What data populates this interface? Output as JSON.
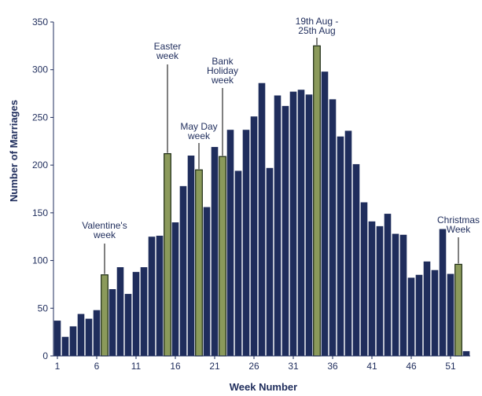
{
  "chart_data": {
    "type": "bar",
    "xlabel": "Week Number",
    "ylabel": "Number of Marriages",
    "ylim": [
      0,
      350
    ],
    "yticks": [
      0,
      50,
      100,
      150,
      200,
      250,
      300,
      350
    ],
    "xtick_labels": [
      1,
      6,
      11,
      16,
      21,
      26,
      31,
      36,
      41,
      46,
      51
    ],
    "grid": false,
    "legend": "none",
    "colors": {
      "normal": "#1f2d5c",
      "highlight": "#8b9a5b",
      "highlight_outline": "#1b2a12",
      "axis": "#1f2d5c"
    },
    "x": [
      1,
      2,
      3,
      4,
      5,
      6,
      7,
      8,
      9,
      10,
      11,
      12,
      13,
      14,
      15,
      16,
      17,
      18,
      19,
      20,
      21,
      22,
      23,
      24,
      25,
      26,
      27,
      28,
      29,
      30,
      31,
      32,
      33,
      34,
      35,
      36,
      37,
      38,
      39,
      40,
      41,
      42,
      43,
      44,
      45,
      46,
      47,
      48,
      49,
      50,
      51,
      52,
      53
    ],
    "values": [
      37,
      20,
      31,
      44,
      39,
      48,
      85,
      70,
      93,
      65,
      88,
      93,
      125,
      126,
      212,
      140,
      178,
      210,
      195,
      156,
      219,
      209,
      237,
      194,
      237,
      251,
      286,
      197,
      273,
      262,
      277,
      279,
      274,
      325,
      298,
      269,
      230,
      236,
      201,
      161,
      141,
      136,
      149,
      128,
      127,
      82,
      85,
      99,
      90,
      133,
      86,
      96,
      5
    ],
    "highlighted_weeks": [
      7,
      15,
      19,
      22,
      34,
      52
    ],
    "annotations": [
      {
        "week": 7,
        "lines": [
          "Valentine's",
          "week"
        ]
      },
      {
        "week": 15,
        "lines": [
          "Easter",
          "week"
        ]
      },
      {
        "week": 19,
        "lines": [
          "May Day",
          "week"
        ]
      },
      {
        "week": 22,
        "lines": [
          "Bank",
          "Holiday",
          "week"
        ]
      },
      {
        "week": 34,
        "lines": [
          "19th Aug -",
          "25th Aug"
        ]
      },
      {
        "week": 52,
        "lines": [
          "Christmas",
          "Week"
        ]
      }
    ]
  }
}
